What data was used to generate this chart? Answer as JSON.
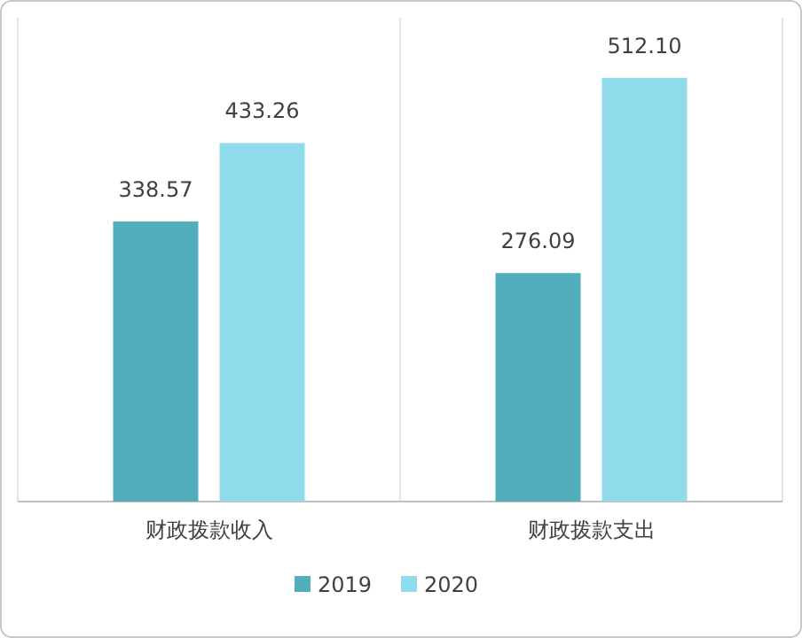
{
  "chart_data": {
    "type": "bar",
    "categories": [
      "财政拨款收入",
      "财政拨款支出"
    ],
    "series": [
      {
        "name": "2019",
        "color": "#52aebb",
        "values": [
          338.57,
          276.09
        ],
        "value_labels": [
          "338.57",
          "276.09"
        ]
      },
      {
        "name": "2020",
        "color": "#90dcec",
        "values": [
          433.26,
          512.1
        ],
        "value_labels": [
          "433.26",
          "512.10"
        ]
      }
    ],
    "grid": "x",
    "legend": "bottom"
  }
}
